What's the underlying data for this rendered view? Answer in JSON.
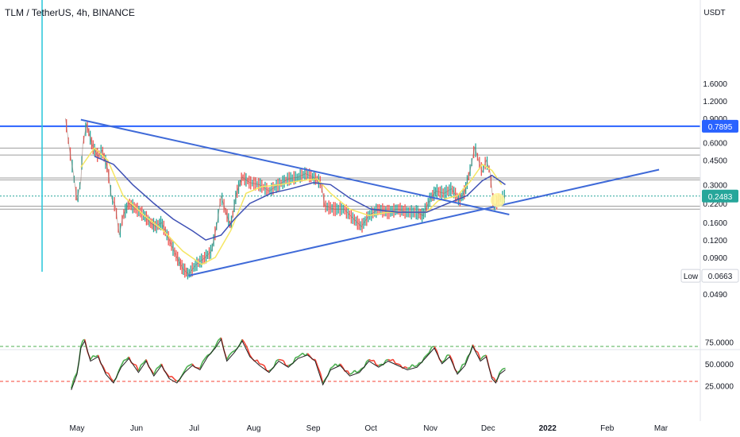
{
  "header": {
    "symbol_label": "TLM / TetherUS, 4h, BINANCE"
  },
  "currency": "USDT",
  "colors": {
    "background": "#ffffff",
    "axis_text": "#131722",
    "grid_line": "#9e9e9e",
    "resistance_line": "#2962ff",
    "trend_line": "#3f6ad8",
    "price_line": "#26a69a",
    "up_candle": "#26a69a",
    "down_candle": "#ef5350",
    "ma_fast": "#f5e663",
    "ma_slow": "#3f51b5",
    "rsi_up": "#4caf50",
    "rsi_down": "#f44336",
    "rsi_signal": "#212121",
    "rsi_upper_band": "#4caf50",
    "rsi_lower_band": "#f44336",
    "marker": "#fff59d",
    "vertical_marker": "#26c6da"
  },
  "chart_data": {
    "type": "line",
    "title": "TLM / TetherUS, 4h, BINANCE",
    "y_scale": "log",
    "price_axis": {
      "ticks": [
        "1.6000",
        "1.2000",
        "0.9000",
        "0.6000",
        "0.4500",
        "0.3000",
        "0.2200",
        "0.1600",
        "0.1200",
        "0.0900",
        "0.0490"
      ],
      "tick_values": [
        1.6,
        1.2,
        0.9,
        0.6,
        0.45,
        0.3,
        0.22,
        0.16,
        0.12,
        0.09,
        0.049
      ]
    },
    "time_axis": {
      "ticks": [
        "May",
        "Jun",
        "Jul",
        "Aug",
        "Sep",
        "Oct",
        "Nov",
        "Dec",
        "2022",
        "Feb",
        "Mar"
      ],
      "tick_values": [
        "2021-05-01",
        "2021-06-01",
        "2021-07-01",
        "2021-08-01",
        "2021-09-01",
        "2021-10-01",
        "2021-11-01",
        "2021-12-01",
        "2022-01-01",
        "2022-02-01",
        "2022-03-01"
      ]
    },
    "last_price": {
      "value": 0.2483,
      "label": "0.2483"
    },
    "resistance": {
      "value": 0.7895,
      "label": "0.7895"
    },
    "low_marker": {
      "label": "Low",
      "value": 0.0663,
      "value_label": "0.0663"
    },
    "horizontal_levels": [
      0.55,
      0.49,
      0.335,
      0.325,
      0.21,
      0.2
    ],
    "trend_lines": [
      {
        "from": {
          "date": "2021-05-03",
          "price": 0.88
        },
        "to": {
          "date": "2021-12-12",
          "price": 0.183
        }
      },
      {
        "from": {
          "date": "2021-06-28",
          "price": 0.0665
        },
        "to": {
          "date": "2022-02-28",
          "price": 0.385
        }
      }
    ],
    "marker": {
      "date": "2021-12-06",
      "price": 0.232
    },
    "series": [
      {
        "name": "Price",
        "points": [
          {
            "date": "2021-04-25",
            "price": 0.9
          },
          {
            "date": "2021-04-27",
            "price": 0.55
          },
          {
            "date": "2021-04-29",
            "price": 0.37
          },
          {
            "date": "2021-05-01",
            "price": 0.23
          },
          {
            "date": "2021-05-03",
            "price": 0.32
          },
          {
            "date": "2021-05-04",
            "price": 0.58
          },
          {
            "date": "2021-05-06",
            "price": 0.82
          },
          {
            "date": "2021-05-09",
            "price": 0.57
          },
          {
            "date": "2021-05-12",
            "price": 0.48
          },
          {
            "date": "2021-05-14",
            "price": 0.53
          },
          {
            "date": "2021-05-17",
            "price": 0.39
          },
          {
            "date": "2021-05-19",
            "price": 0.24
          },
          {
            "date": "2021-05-21",
            "price": 0.21
          },
          {
            "date": "2021-05-23",
            "price": 0.13
          },
          {
            "date": "2021-05-25",
            "price": 0.18
          },
          {
            "date": "2021-05-28",
            "price": 0.22
          },
          {
            "date": "2021-06-01",
            "price": 0.2
          },
          {
            "date": "2021-06-05",
            "price": 0.18
          },
          {
            "date": "2021-06-08",
            "price": 0.16
          },
          {
            "date": "2021-06-11",
            "price": 0.15
          },
          {
            "date": "2021-06-14",
            "price": 0.16
          },
          {
            "date": "2021-06-18",
            "price": 0.12
          },
          {
            "date": "2021-06-22",
            "price": 0.09
          },
          {
            "date": "2021-06-25",
            "price": 0.075
          },
          {
            "date": "2021-06-28",
            "price": 0.068
          },
          {
            "date": "2021-07-02",
            "price": 0.08
          },
          {
            "date": "2021-07-06",
            "price": 0.088
          },
          {
            "date": "2021-07-10",
            "price": 0.1
          },
          {
            "date": "2021-07-13",
            "price": 0.16
          },
          {
            "date": "2021-07-15",
            "price": 0.25
          },
          {
            "date": "2021-07-17",
            "price": 0.2
          },
          {
            "date": "2021-07-20",
            "price": 0.15
          },
          {
            "date": "2021-07-23",
            "price": 0.26
          },
          {
            "date": "2021-07-26",
            "price": 0.34
          },
          {
            "date": "2021-07-30",
            "price": 0.31
          },
          {
            "date": "2021-08-04",
            "price": 0.3
          },
          {
            "date": "2021-08-09",
            "price": 0.27
          },
          {
            "date": "2021-08-14",
            "price": 0.3
          },
          {
            "date": "2021-08-19",
            "price": 0.33
          },
          {
            "date": "2021-08-24",
            "price": 0.34
          },
          {
            "date": "2021-08-28",
            "price": 0.36
          },
          {
            "date": "2021-09-01",
            "price": 0.34
          },
          {
            "date": "2021-09-05",
            "price": 0.31
          },
          {
            "date": "2021-09-07",
            "price": 0.21
          },
          {
            "date": "2021-09-12",
            "price": 0.2
          },
          {
            "date": "2021-09-17",
            "price": 0.2
          },
          {
            "date": "2021-09-22",
            "price": 0.17
          },
          {
            "date": "2021-09-26",
            "price": 0.15
          },
          {
            "date": "2021-09-30",
            "price": 0.18
          },
          {
            "date": "2021-10-05",
            "price": 0.2
          },
          {
            "date": "2021-10-10",
            "price": 0.19
          },
          {
            "date": "2021-10-15",
            "price": 0.2
          },
          {
            "date": "2021-10-20",
            "price": 0.19
          },
          {
            "date": "2021-10-25",
            "price": 0.19
          },
          {
            "date": "2021-10-28",
            "price": 0.18
          },
          {
            "date": "2021-11-01",
            "price": 0.24
          },
          {
            "date": "2021-11-04",
            "price": 0.27
          },
          {
            "date": "2021-11-08",
            "price": 0.26
          },
          {
            "date": "2021-11-12",
            "price": 0.28
          },
          {
            "date": "2021-11-16",
            "price": 0.23
          },
          {
            "date": "2021-11-19",
            "price": 0.27
          },
          {
            "date": "2021-11-22",
            "price": 0.4
          },
          {
            "date": "2021-11-24",
            "price": 0.56
          },
          {
            "date": "2021-11-26",
            "price": 0.45
          },
          {
            "date": "2021-11-28",
            "price": 0.37
          },
          {
            "date": "2021-11-30",
            "price": 0.45
          },
          {
            "date": "2021-12-02",
            "price": 0.37
          },
          {
            "date": "2021-12-04",
            "price": 0.2
          },
          {
            "date": "2021-12-06",
            "price": 0.23
          },
          {
            "date": "2021-12-08",
            "price": 0.24
          },
          {
            "date": "2021-12-10",
            "price": 0.25
          }
        ]
      },
      {
        "name": "MA fast",
        "points": [
          {
            "date": "2021-05-03",
            "price": 0.4
          },
          {
            "date": "2021-05-10",
            "price": 0.55
          },
          {
            "date": "2021-05-17",
            "price": 0.45
          },
          {
            "date": "2021-05-25",
            "price": 0.25
          },
          {
            "date": "2021-06-05",
            "price": 0.18
          },
          {
            "date": "2021-06-15",
            "price": 0.14
          },
          {
            "date": "2021-06-25",
            "price": 0.1
          },
          {
            "date": "2021-07-05",
            "price": 0.08
          },
          {
            "date": "2021-07-12",
            "price": 0.09
          },
          {
            "date": "2021-07-20",
            "price": 0.14
          },
          {
            "date": "2021-07-28",
            "price": 0.26
          },
          {
            "date": "2021-08-05",
            "price": 0.29
          },
          {
            "date": "2021-08-15",
            "price": 0.3
          },
          {
            "date": "2021-08-25",
            "price": 0.32
          },
          {
            "date": "2021-09-03",
            "price": 0.33
          },
          {
            "date": "2021-09-10",
            "price": 0.26
          },
          {
            "date": "2021-09-20",
            "price": 0.2
          },
          {
            "date": "2021-09-30",
            "price": 0.18
          },
          {
            "date": "2021-10-10",
            "price": 0.19
          },
          {
            "date": "2021-10-20",
            "price": 0.19
          },
          {
            "date": "2021-10-30",
            "price": 0.19
          },
          {
            "date": "2021-11-05",
            "price": 0.23
          },
          {
            "date": "2021-11-15",
            "price": 0.25
          },
          {
            "date": "2021-11-22",
            "price": 0.32
          },
          {
            "date": "2021-11-28",
            "price": 0.42
          },
          {
            "date": "2021-12-03",
            "price": 0.38
          },
          {
            "date": "2021-12-08",
            "price": 0.3
          }
        ]
      },
      {
        "name": "MA slow",
        "points": [
          {
            "date": "2021-05-10",
            "price": 0.48
          },
          {
            "date": "2021-05-20",
            "price": 0.42
          },
          {
            "date": "2021-05-30",
            "price": 0.3
          },
          {
            "date": "2021-06-10",
            "price": 0.22
          },
          {
            "date": "2021-06-20",
            "price": 0.17
          },
          {
            "date": "2021-06-30",
            "price": 0.14
          },
          {
            "date": "2021-07-07",
            "price": 0.12
          },
          {
            "date": "2021-07-15",
            "price": 0.13
          },
          {
            "date": "2021-07-22",
            "price": 0.17
          },
          {
            "date": "2021-07-30",
            "price": 0.22
          },
          {
            "date": "2021-08-10",
            "price": 0.26
          },
          {
            "date": "2021-08-20",
            "price": 0.28
          },
          {
            "date": "2021-09-01",
            "price": 0.31
          },
          {
            "date": "2021-09-10",
            "price": 0.3
          },
          {
            "date": "2021-09-20",
            "price": 0.24
          },
          {
            "date": "2021-10-01",
            "price": 0.2
          },
          {
            "date": "2021-10-15",
            "price": 0.19
          },
          {
            "date": "2021-10-30",
            "price": 0.19
          },
          {
            "date": "2021-11-10",
            "price": 0.22
          },
          {
            "date": "2021-11-20",
            "price": 0.25
          },
          {
            "date": "2021-11-28",
            "price": 0.32
          },
          {
            "date": "2021-12-03",
            "price": 0.35
          },
          {
            "date": "2021-12-10",
            "price": 0.3
          }
        ]
      }
    ],
    "rsi": {
      "ticks": [
        "75.0000",
        "50.0000",
        "25.0000"
      ],
      "tick_values": [
        75,
        50,
        25
      ],
      "bands": [
        70,
        30
      ],
      "points": [
        {
          "date": "2021-04-28",
          "value": 22
        },
        {
          "date": "2021-05-01",
          "value": 40
        },
        {
          "date": "2021-05-03",
          "value": 70
        },
        {
          "date": "2021-05-05",
          "value": 78
        },
        {
          "date": "2021-05-08",
          "value": 55
        },
        {
          "date": "2021-05-12",
          "value": 60
        },
        {
          "date": "2021-05-16",
          "value": 40
        },
        {
          "date": "2021-05-20",
          "value": 30
        },
        {
          "date": "2021-05-24",
          "value": 48
        },
        {
          "date": "2021-05-28",
          "value": 58
        },
        {
          "date": "2021-06-02",
          "value": 42
        },
        {
          "date": "2021-06-06",
          "value": 55
        },
        {
          "date": "2021-06-10",
          "value": 38
        },
        {
          "date": "2021-06-14",
          "value": 50
        },
        {
          "date": "2021-06-18",
          "value": 35
        },
        {
          "date": "2021-06-22",
          "value": 30
        },
        {
          "date": "2021-06-26",
          "value": 42
        },
        {
          "date": "2021-06-30",
          "value": 50
        },
        {
          "date": "2021-07-04",
          "value": 45
        },
        {
          "date": "2021-07-08",
          "value": 60
        },
        {
          "date": "2021-07-12",
          "value": 70
        },
        {
          "date": "2021-07-15",
          "value": 80
        },
        {
          "date": "2021-07-18",
          "value": 55
        },
        {
          "date": "2021-07-22",
          "value": 65
        },
        {
          "date": "2021-07-26",
          "value": 78
        },
        {
          "date": "2021-07-30",
          "value": 60
        },
        {
          "date": "2021-08-04",
          "value": 50
        },
        {
          "date": "2021-08-09",
          "value": 42
        },
        {
          "date": "2021-08-14",
          "value": 55
        },
        {
          "date": "2021-08-19",
          "value": 48
        },
        {
          "date": "2021-08-24",
          "value": 58
        },
        {
          "date": "2021-08-29",
          "value": 62
        },
        {
          "date": "2021-09-02",
          "value": 55
        },
        {
          "date": "2021-09-06",
          "value": 28
        },
        {
          "date": "2021-09-10",
          "value": 45
        },
        {
          "date": "2021-09-15",
          "value": 50
        },
        {
          "date": "2021-09-20",
          "value": 38
        },
        {
          "date": "2021-09-25",
          "value": 42
        },
        {
          "date": "2021-09-30",
          "value": 55
        },
        {
          "date": "2021-10-05",
          "value": 48
        },
        {
          "date": "2021-10-10",
          "value": 55
        },
        {
          "date": "2021-10-15",
          "value": 50
        },
        {
          "date": "2021-10-20",
          "value": 45
        },
        {
          "date": "2021-10-25",
          "value": 48
        },
        {
          "date": "2021-10-30",
          "value": 60
        },
        {
          "date": "2021-11-03",
          "value": 70
        },
        {
          "date": "2021-11-07",
          "value": 52
        },
        {
          "date": "2021-11-11",
          "value": 60
        },
        {
          "date": "2021-11-15",
          "value": 40
        },
        {
          "date": "2021-11-19",
          "value": 50
        },
        {
          "date": "2021-11-23",
          "value": 72
        },
        {
          "date": "2021-11-27",
          "value": 55
        },
        {
          "date": "2021-11-30",
          "value": 60
        },
        {
          "date": "2021-12-03",
          "value": 35
        },
        {
          "date": "2021-12-05",
          "value": 30
        },
        {
          "date": "2021-12-07",
          "value": 40
        },
        {
          "date": "2021-12-10",
          "value": 45
        }
      ]
    }
  }
}
